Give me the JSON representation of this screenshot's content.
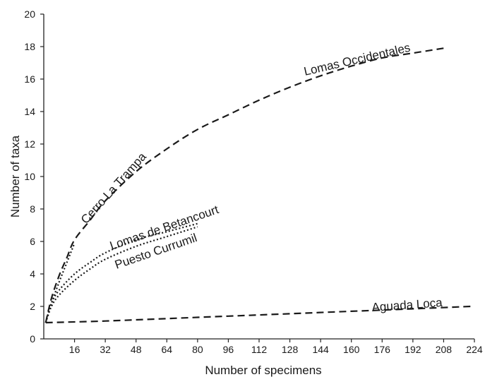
{
  "chart_data": {
    "type": "line",
    "xlabel": "Number of specimens",
    "ylabel": "Number of taxa",
    "xlim": [
      0,
      224
    ],
    "ylim": [
      0,
      20
    ],
    "x_ticks": [
      16,
      32,
      48,
      64,
      80,
      96,
      112,
      128,
      144,
      160,
      176,
      192,
      208,
      224
    ],
    "y_ticks": [
      0,
      2,
      4,
      6,
      8,
      10,
      12,
      14,
      16,
      18,
      20
    ],
    "grid": false,
    "series": [
      {
        "name": "Lomas Occidentales",
        "style": "dashed",
        "points": [
          [
            1,
            1.0
          ],
          [
            4,
            2.5
          ],
          [
            8,
            3.9
          ],
          [
            12,
            5.0
          ],
          [
            16,
            6.1
          ],
          [
            24,
            7.3
          ],
          [
            32,
            8.5
          ],
          [
            48,
            10.3
          ],
          [
            64,
            11.7
          ],
          [
            80,
            12.9
          ],
          [
            96,
            13.8
          ],
          [
            112,
            14.7
          ],
          [
            128,
            15.5
          ],
          [
            144,
            16.2
          ],
          [
            160,
            16.8
          ],
          [
            176,
            17.3
          ],
          [
            192,
            17.6
          ],
          [
            208,
            17.9
          ]
        ]
      },
      {
        "name": "Cerro La Trampa",
        "style": "dotted",
        "points": [
          [
            1,
            1.0
          ],
          [
            4,
            2.2
          ],
          [
            8,
            3.5
          ],
          [
            12,
            4.7
          ],
          [
            16,
            5.9
          ]
        ]
      },
      {
        "name": "Lomas de Betancourt",
        "style": "dotted",
        "points": [
          [
            1,
            1.0
          ],
          [
            4,
            2.2
          ],
          [
            8,
            3.0
          ],
          [
            16,
            4.0
          ],
          [
            24,
            4.7
          ],
          [
            32,
            5.3
          ],
          [
            48,
            6.1
          ],
          [
            64,
            6.6
          ],
          [
            80,
            7.1
          ]
        ]
      },
      {
        "name": "Puesto Currumil",
        "style": "dotted",
        "points": [
          [
            1,
            1.0
          ],
          [
            4,
            2.0
          ],
          [
            8,
            2.7
          ],
          [
            16,
            3.6
          ],
          [
            24,
            4.3
          ],
          [
            32,
            4.9
          ],
          [
            48,
            5.7
          ],
          [
            64,
            6.3
          ],
          [
            80,
            6.9
          ]
        ]
      },
      {
        "name": "Aguada Loca",
        "style": "dashed",
        "points": [
          [
            1,
            1.0
          ],
          [
            32,
            1.1
          ],
          [
            64,
            1.25
          ],
          [
            96,
            1.4
          ],
          [
            128,
            1.55
          ],
          [
            160,
            1.7
          ],
          [
            192,
            1.85
          ],
          [
            222,
            2.0
          ]
        ]
      }
    ]
  }
}
